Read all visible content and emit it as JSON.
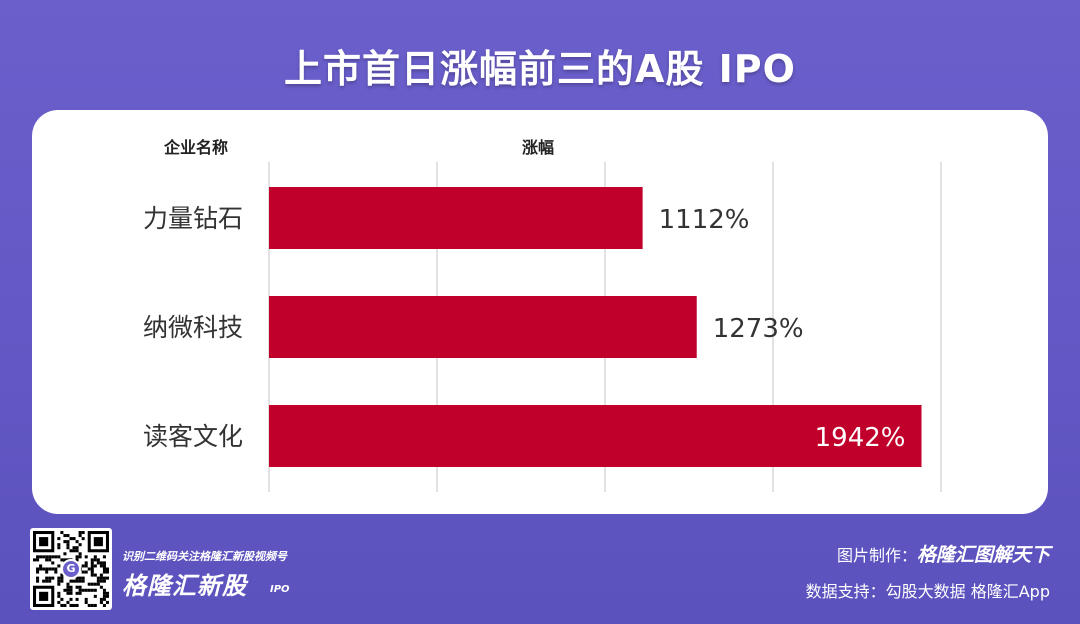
{
  "title": "上市首日涨幅前三的A股 IPO",
  "column_headers": {
    "company": "企业名称",
    "gain": "涨幅"
  },
  "chart_data": {
    "type": "bar",
    "orientation": "horizontal",
    "categories": [
      "力量钻石",
      "纳微科技",
      "读客文化"
    ],
    "values": [
      1112,
      1273,
      1942
    ],
    "value_labels": [
      "1112%",
      "1273%",
      "1942%"
    ],
    "xlim": [
      0,
      2000
    ],
    "grid": true,
    "bar_color": "#c0002a"
  },
  "footer": {
    "scan_text": "识别二维码关注格隆汇新股视频号",
    "brand": "格隆汇新股",
    "brand_suffix": "IPO",
    "qr_badge": "G",
    "image_credit_label": "图片制作：",
    "image_credit_brand": "格隆汇图解天下",
    "data_credit": "数据支持：勾股大数据  格隆汇App"
  },
  "colors": {
    "background": "#6a5fcb",
    "card": "#ffffff",
    "bar": "#c0002a"
  }
}
